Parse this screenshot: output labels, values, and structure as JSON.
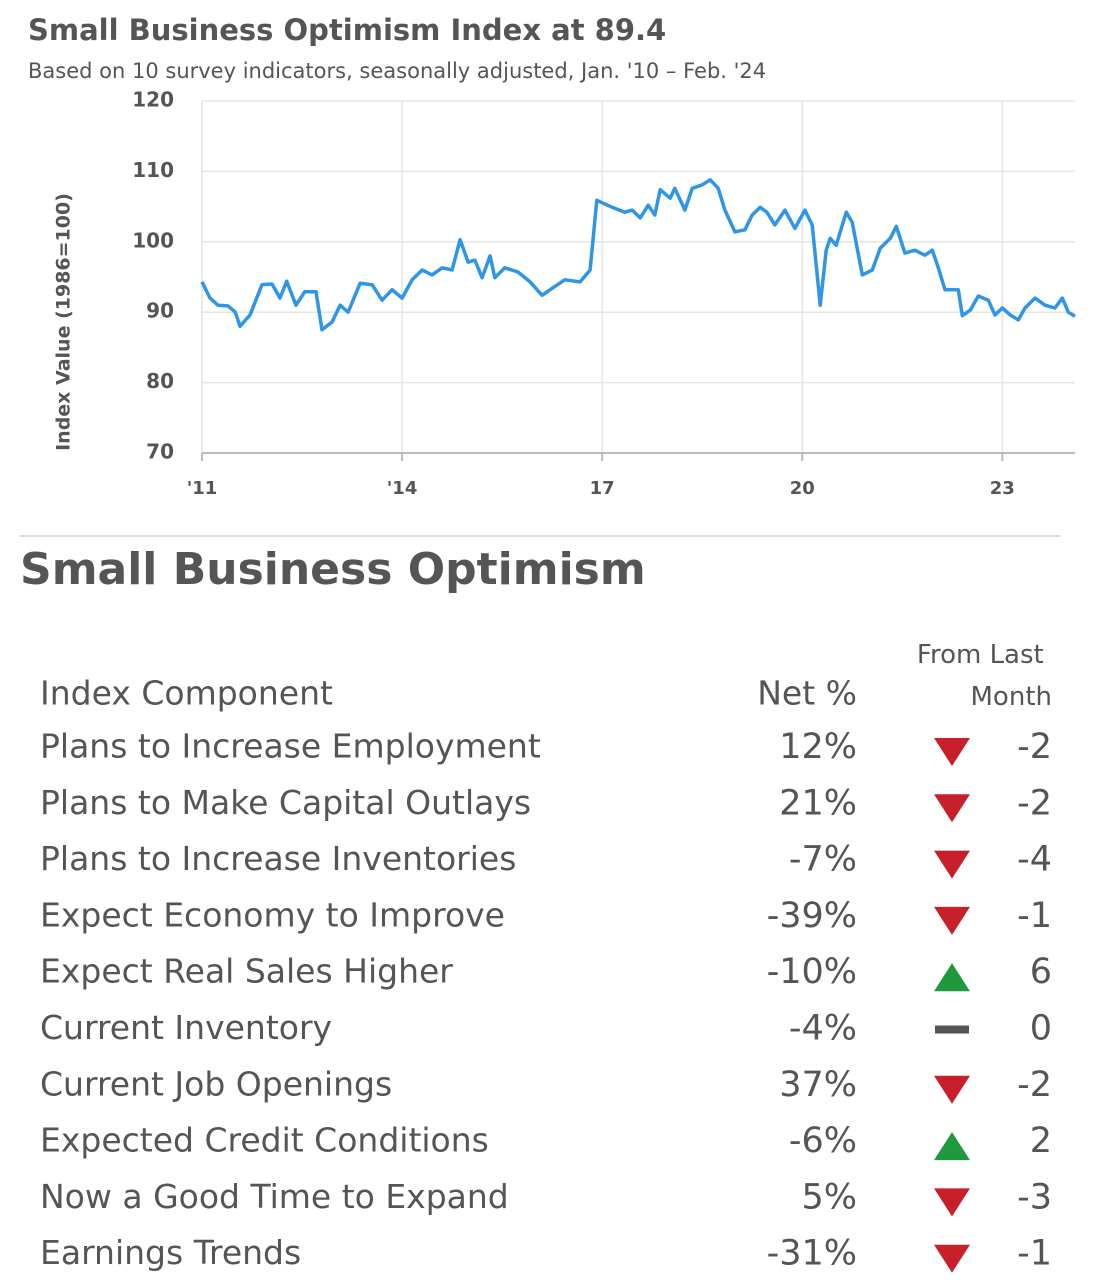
{
  "chart_data": {
    "type": "line",
    "title": "Small Business Optimism Index at 89.4",
    "subtitle": "Based on 10 survey indicators, seasonally adjusted,  Jan. '10 – Feb. '24",
    "y_label": "Index Value (1986=100)",
    "color": "#2f95e6",
    "grid": true,
    "xlim": [
      2011,
      2024.09
    ],
    "ylim": [
      70,
      120
    ],
    "yticks": [
      70,
      80,
      90,
      100,
      110,
      120
    ],
    "xticks": [
      {
        "value": 2011,
        "label": "'11"
      },
      {
        "value": 2014,
        "label": "'14"
      },
      {
        "value": 2017,
        "label": "17"
      },
      {
        "value": 2020,
        "label": "20"
      },
      {
        "value": 2023,
        "label": "23"
      }
    ],
    "x": [
      2011.0,
      2011.12,
      2011.24,
      2011.39,
      2011.5,
      2011.57,
      2011.72,
      2011.9,
      2012.05,
      2012.17,
      2012.27,
      2012.41,
      2012.54,
      2012.71,
      2012.8,
      2012.95,
      2013.07,
      2013.19,
      2013.37,
      2013.55,
      2013.7,
      2013.85,
      2014.0,
      2014.15,
      2014.3,
      2014.45,
      2014.6,
      2014.75,
      2014.87,
      2014.99,
      2015.09,
      2015.2,
      2015.32,
      2015.39,
      2015.54,
      2015.74,
      2015.92,
      2016.1,
      2016.25,
      2016.44,
      2016.67,
      2016.82,
      2016.92,
      2017.15,
      2017.34,
      2017.45,
      2017.57,
      2017.69,
      2017.79,
      2017.87,
      2018.02,
      2018.09,
      2018.24,
      2018.35,
      2018.5,
      2018.62,
      2018.74,
      2018.84,
      2018.99,
      2019.14,
      2019.25,
      2019.37,
      2019.47,
      2019.59,
      2019.74,
      2019.89,
      2020.04,
      2020.15,
      2020.27,
      2020.36,
      2020.42,
      2020.51,
      2020.66,
      2020.75,
      2020.9,
      2021.05,
      2021.17,
      2021.32,
      2021.41,
      2021.54,
      2021.69,
      2021.84,
      2021.95,
      2022.04,
      2022.14,
      2022.34,
      2022.4,
      2022.52,
      2022.64,
      2022.79,
      2022.89,
      2023.0,
      2023.12,
      2023.24,
      2023.34,
      2023.49,
      2023.64,
      2023.79,
      2023.9,
      2023.99,
      2024.09
    ],
    "values": [
      94.3,
      92.0,
      91.0,
      90.9,
      90.0,
      88.0,
      89.6,
      93.9,
      94.0,
      92.0,
      94.4,
      91.0,
      92.9,
      92.9,
      87.5,
      88.6,
      91.0,
      90.0,
      94.1,
      93.9,
      91.7,
      93.2,
      92.0,
      94.6,
      96.0,
      95.3,
      96.3,
      96.0,
      100.3,
      97.1,
      97.4,
      94.9,
      98.0,
      94.9,
      96.3,
      95.7,
      94.3,
      92.4,
      93.4,
      94.6,
      94.3,
      96.0,
      105.9,
      104.9,
      104.2,
      104.5,
      103.4,
      105.2,
      103.8,
      107.4,
      106.2,
      107.6,
      104.5,
      107.6,
      108.1,
      108.8,
      107.6,
      104.5,
      101.4,
      101.7,
      103.8,
      104.9,
      104.2,
      102.4,
      104.5,
      101.9,
      104.5,
      102.4,
      91.0,
      98.8,
      100.5,
      99.5,
      104.2,
      102.8,
      95.3,
      96.0,
      99.1,
      100.5,
      102.2,
      98.4,
      98.8,
      98.1,
      98.8,
      96.3,
      93.2,
      93.2,
      89.5,
      90.3,
      92.3,
      91.7,
      89.6,
      90.6,
      89.6,
      88.9,
      90.6,
      92.0,
      91.0,
      90.6,
      92.0,
      90.0,
      89.4
    ]
  },
  "table": {
    "title": "Small Business Optimism",
    "headers": [
      "Index Component",
      "Net %",
      "From Last Month"
    ],
    "up_color": "#1e9a3c",
    "down_color": "#c8202a",
    "flat_color": "#555555",
    "rows": [
      [
        "Plans to Increase Employment",
        "12%",
        -2
      ],
      [
        "Plans to Make Capital Outlays",
        "21%",
        -2
      ],
      [
        "Plans to Increase Inventories",
        "-7%",
        -4
      ],
      [
        "Expect Economy to Improve",
        "-39%",
        -1
      ],
      [
        "Expect Real Sales Higher",
        "-10%",
        6
      ],
      [
        "Current Inventory",
        "-4%",
        0
      ],
      [
        "Current Job Openings",
        "37%",
        -2
      ],
      [
        "Expected Credit Conditions",
        "-6%",
        2
      ],
      [
        "Now a Good Time to Expand",
        "5%",
        -3
      ],
      [
        "Earnings Trends",
        "-31%",
        -1
      ]
    ]
  }
}
